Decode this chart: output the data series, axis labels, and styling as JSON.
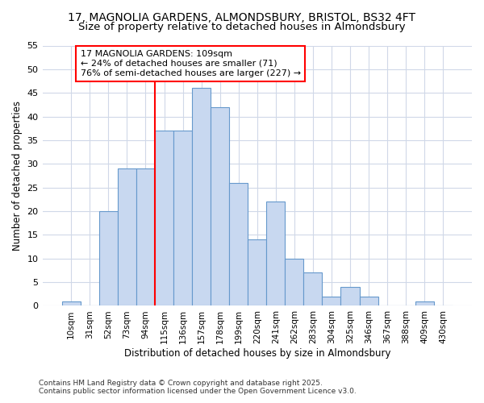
{
  "title_line1": "17, MAGNOLIA GARDENS, ALMONDSBURY, BRISTOL, BS32 4FT",
  "title_line2": "Size of property relative to detached houses in Almondsbury",
  "xlabel": "Distribution of detached houses by size in Almondsbury",
  "ylabel": "Number of detached properties",
  "categories": [
    "10sqm",
    "31sqm",
    "52sqm",
    "73sqm",
    "94sqm",
    "115sqm",
    "136sqm",
    "157sqm",
    "178sqm",
    "199sqm",
    "220sqm",
    "241sqm",
    "262sqm",
    "283sqm",
    "304sqm",
    "325sqm",
    "346sqm",
    "367sqm",
    "388sqm",
    "409sqm",
    "430sqm"
  ],
  "values": [
    1,
    0,
    20,
    29,
    29,
    37,
    37,
    46,
    42,
    26,
    14,
    22,
    10,
    7,
    2,
    4,
    2,
    0,
    0,
    1,
    0
  ],
  "bar_color": "#c8d8f0",
  "bar_edge_color": "#6699cc",
  "annotation_text_line1": "17 MAGNOLIA GARDENS: 109sqm",
  "annotation_text_line2": "← 24% of detached houses are smaller (71)",
  "annotation_text_line3": "76% of semi-detached houses are larger (227) →",
  "annotation_box_color": "white",
  "annotation_box_edge_color": "red",
  "vline_color": "red",
  "vline_x": 4.5,
  "ylim": [
    0,
    55
  ],
  "yticks": [
    0,
    5,
    10,
    15,
    20,
    25,
    30,
    35,
    40,
    45,
    50,
    55
  ],
  "footnote": "Contains HM Land Registry data © Crown copyright and database right 2025.\nContains public sector information licensed under the Open Government Licence v3.0.",
  "bg_color": "#ffffff",
  "grid_color": "#d0d8e8",
  "title1_fontsize": 10,
  "title2_fontsize": 9.5
}
